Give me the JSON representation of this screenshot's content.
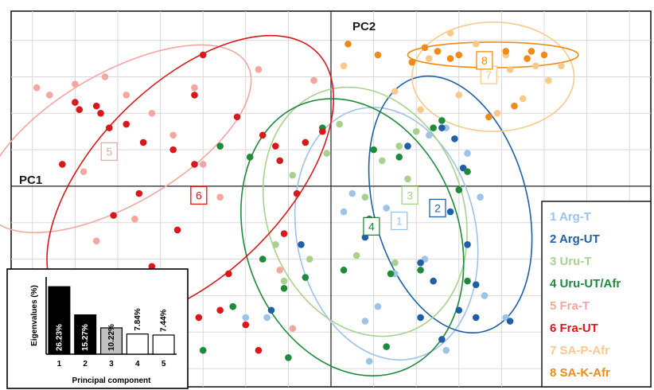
{
  "chart_data": {
    "type": "scatter",
    "xlabel": "PC1",
    "ylabel": "PC2",
    "xlim": [
      -7.5,
      7.5
    ],
    "ylim": [
      -5.5,
      4.8
    ],
    "grid": true,
    "legend_position": "right",
    "series": [
      {
        "name": "Arg-T",
        "number": "1",
        "color": "#9dc3e6",
        "centroid": [
          1.6,
          -0.95
        ],
        "ellipse": {
          "cx": 1.3,
          "cy": -1.3,
          "rx": 2.1,
          "ry": 3.5,
          "angle": -12
        },
        "points": [
          [
            0.8,
            -3.7
          ],
          [
            1.1,
            -3.3
          ],
          [
            1.5,
            -2.4
          ],
          [
            1.9,
            -0.4
          ],
          [
            2.3,
            1.4
          ],
          [
            2.7,
            1.6
          ],
          [
            3.2,
            0.9
          ],
          [
            3.5,
            -0.3
          ],
          [
            1.3,
            -0.6
          ],
          [
            0.3,
            -0.7
          ],
          [
            -2.0,
            -3.6
          ],
          [
            -1.5,
            -3.6
          ],
          [
            3.6,
            -3.0
          ],
          [
            4.1,
            -3.6
          ],
          [
            0.9,
            -4.8
          ],
          [
            2.7,
            -4.5
          ],
          [
            0.5,
            -0.2
          ],
          [
            2.2,
            -2.0
          ]
        ]
      },
      {
        "name": "Arg-UT",
        "number": "2",
        "color": "#1f5fa6",
        "centroid": [
          2.5,
          -0.6
        ],
        "ellipse": {
          "cx": 2.8,
          "cy": -0.5,
          "rx": 1.8,
          "ry": 3.6,
          "angle": -15
        },
        "points": [
          [
            2.6,
            1.6
          ],
          [
            2.9,
            1.3
          ],
          [
            3.1,
            0.5
          ],
          [
            2.8,
            -0.7
          ],
          [
            3.2,
            -1.6
          ],
          [
            2.1,
            -2.1
          ],
          [
            2.4,
            -2.6
          ],
          [
            3.4,
            -2.7
          ],
          [
            3.0,
            -3.4
          ],
          [
            3.4,
            -3.6
          ],
          [
            4.2,
            -3.7
          ],
          [
            2.6,
            -4.2
          ],
          [
            0.8,
            -1.4
          ],
          [
            -0.7,
            -1.6
          ],
          [
            -1.4,
            -3.4
          ],
          [
            1.8,
            1.1
          ],
          [
            2.1,
            -3.6
          ]
        ]
      },
      {
        "name": "Uru-T",
        "number": "3",
        "color": "#a9d18e",
        "centroid": [
          1.85,
          -0.25
        ],
        "ellipse": {
          "cx": 0.8,
          "cy": -0.7,
          "rx": 2.3,
          "ry": 3.5,
          "angle": -20
        },
        "points": [
          [
            2.0,
            1.5
          ],
          [
            1.6,
            1.1
          ],
          [
            1.2,
            0.7
          ],
          [
            0.2,
            1.7
          ],
          [
            -0.1,
            0.9
          ],
          [
            0.8,
            -0.3
          ],
          [
            1.5,
            -2.1
          ],
          [
            0.6,
            -1.9
          ],
          [
            -0.5,
            -2.0
          ],
          [
            -1.1,
            -2.6
          ],
          [
            -1.3,
            -1.6
          ],
          [
            -0.9,
            0.3
          ],
          [
            1.8,
            0.2
          ]
        ]
      },
      {
        "name": "Uru-UT/Afr",
        "number": "4",
        "color": "#1f8a3b",
        "centroid": [
          0.95,
          -1.1
        ],
        "ellipse": {
          "cx": 0.5,
          "cy": -1.4,
          "rx": 2.5,
          "ry": 3.9,
          "angle": -20
        },
        "points": [
          [
            -0.2,
            1.6
          ],
          [
            1.0,
            1.0
          ],
          [
            1.6,
            0.8
          ],
          [
            2.6,
            1.8
          ],
          [
            3.2,
            0.4
          ],
          [
            3.0,
            -0.1
          ],
          [
            0.9,
            -0.9
          ],
          [
            0.3,
            -2.3
          ],
          [
            -0.6,
            -2.5
          ],
          [
            -2.3,
            -3.3
          ],
          [
            -1.6,
            -2.0
          ],
          [
            -1.1,
            -2.8
          ],
          [
            2.1,
            -2.3
          ],
          [
            1.4,
            -2.4
          ],
          [
            -3.0,
            -4.5
          ],
          [
            -1.0,
            -4.7
          ],
          [
            1.3,
            -4.4
          ],
          [
            3.2,
            -2.6
          ],
          [
            -1.9,
            0.8
          ],
          [
            -2.6,
            1.1
          ],
          [
            2.4,
            1.6
          ]
        ]
      },
      {
        "name": "Fra-T",
        "number": "5",
        "color": "#f4a6a0",
        "centroid": [
          -5.2,
          0.95
        ],
        "ellipse": {
          "cx": -5.0,
          "cy": 1.3,
          "rx": 3.5,
          "ry": 1.8,
          "angle": -30
        },
        "points": [
          [
            -6.6,
            2.5
          ],
          [
            -6.0,
            2.8
          ],
          [
            -5.3,
            3.0
          ],
          [
            -4.8,
            2.5
          ],
          [
            -4.2,
            2.0
          ],
          [
            -3.7,
            1.4
          ],
          [
            -3.0,
            0.6
          ],
          [
            -2.6,
            -0.3
          ],
          [
            -4.6,
            -0.9
          ],
          [
            -5.5,
            -1.5
          ],
          [
            -6.3,
            -3.0
          ],
          [
            -6.0,
            -3.4
          ],
          [
            -5.1,
            -2.8
          ],
          [
            -6.9,
            2.7
          ],
          [
            -1.7,
            3.2
          ],
          [
            -0.4,
            2.9
          ],
          [
            -1.2,
            -2.3
          ],
          [
            -0.9,
            -3.9
          ],
          [
            -5.8,
            0.4
          ],
          [
            -3.2,
            2.7
          ]
        ]
      },
      {
        "name": "Fra-UT",
        "number": "6",
        "color": "#d7191c",
        "centroid": [
          -3.1,
          -0.25
        ],
        "ellipse": {
          "cx": -3.3,
          "cy": 0.2,
          "rx": 4.2,
          "ry": 2.6,
          "angle": -45
        },
        "points": [
          [
            -6.0,
            2.3
          ],
          [
            -5.5,
            2.2
          ],
          [
            -4.8,
            1.7
          ],
          [
            -4.4,
            1.2
          ],
          [
            -3.7,
            1.0
          ],
          [
            -3.2,
            0.6
          ],
          [
            -1.6,
            1.4
          ],
          [
            -1.3,
            1.1
          ],
          [
            -0.6,
            1.2
          ],
          [
            -0.2,
            1.5
          ],
          [
            -4.5,
            -0.2
          ],
          [
            -5.1,
            -0.8
          ],
          [
            -4.2,
            -2.2
          ],
          [
            -3.9,
            -2.7
          ],
          [
            -4.5,
            -3.3
          ],
          [
            -3.1,
            -3.6
          ],
          [
            -2.6,
            -3.4
          ],
          [
            -2.0,
            -3.8
          ],
          [
            -1.1,
            -1.3
          ],
          [
            -0.8,
            -0.2
          ],
          [
            -3.2,
            2.5
          ],
          [
            -3.0,
            3.6
          ],
          [
            -5.2,
            1.6
          ],
          [
            -6.3,
            0.6
          ],
          [
            -2.2,
            1.9
          ],
          [
            -1.2,
            0.7
          ],
          [
            -5.4,
            2.0
          ],
          [
            -3.6,
            -1.2
          ],
          [
            -2.4,
            -2.4
          ],
          [
            -1.7,
            -4.5
          ],
          [
            -5.9,
            2.1
          ]
        ]
      },
      {
        "name": "SA-P-Afr",
        "number": "7",
        "color": "#f9c98a",
        "centroid": [
          3.7,
          3.05
        ],
        "ellipse": {
          "cx": 3.8,
          "cy": 3.0,
          "rx": 1.9,
          "ry": 1.5,
          "angle": 0
        },
        "points": [
          [
            2.8,
            4.2
          ],
          [
            3.4,
            3.9
          ],
          [
            4.1,
            3.6
          ],
          [
            4.8,
            3.3
          ],
          [
            5.1,
            2.9
          ],
          [
            4.5,
            2.4
          ],
          [
            3.9,
            2.0
          ],
          [
            2.3,
            3.5
          ],
          [
            2.1,
            2.1
          ],
          [
            1.5,
            2.6
          ],
          [
            0.3,
            3.3
          ],
          [
            5.4,
            3.3
          ],
          [
            3.0,
            2.5
          ],
          [
            4.2,
            3.2
          ]
        ]
      },
      {
        "name": "SA-K-Afr",
        "number": "8",
        "color": "#f08a18",
        "centroid": [
          3.6,
          3.45
        ],
        "ellipse": {
          "cx": 3.8,
          "cy": 3.6,
          "rx": 2.0,
          "ry": 0.35,
          "angle": 0
        },
        "points": [
          [
            2.5,
            3.7
          ],
          [
            3.0,
            3.6
          ],
          [
            3.5,
            3.6
          ],
          [
            4.1,
            3.7
          ],
          [
            4.6,
            3.5
          ],
          [
            5.0,
            3.6
          ],
          [
            1.9,
            3.4
          ],
          [
            2.2,
            3.8
          ],
          [
            1.1,
            3.6
          ],
          [
            0.4,
            3.9
          ],
          [
            2.8,
            3.5
          ],
          [
            4.3,
            2.2
          ],
          [
            3.7,
            1.9
          ],
          [
            4.7,
            3.7
          ]
        ]
      }
    ],
    "inset_scree": {
      "ylabel": "Eigenvalues (%)",
      "xlabel": "Principal component",
      "categories": [
        "1",
        "2",
        "3",
        "4",
        "5"
      ],
      "values": [
        26.23,
        15.27,
        10.22,
        7.84,
        7.44
      ],
      "value_labels": [
        "26.23%",
        "15.27%",
        "10.22%",
        "7.84%",
        "7.44%"
      ],
      "bar_colors": [
        "#000000",
        "#000000",
        "#bfbfbf",
        "#ffffff",
        "#ffffff"
      ],
      "ylim": [
        0,
        30
      ]
    }
  }
}
